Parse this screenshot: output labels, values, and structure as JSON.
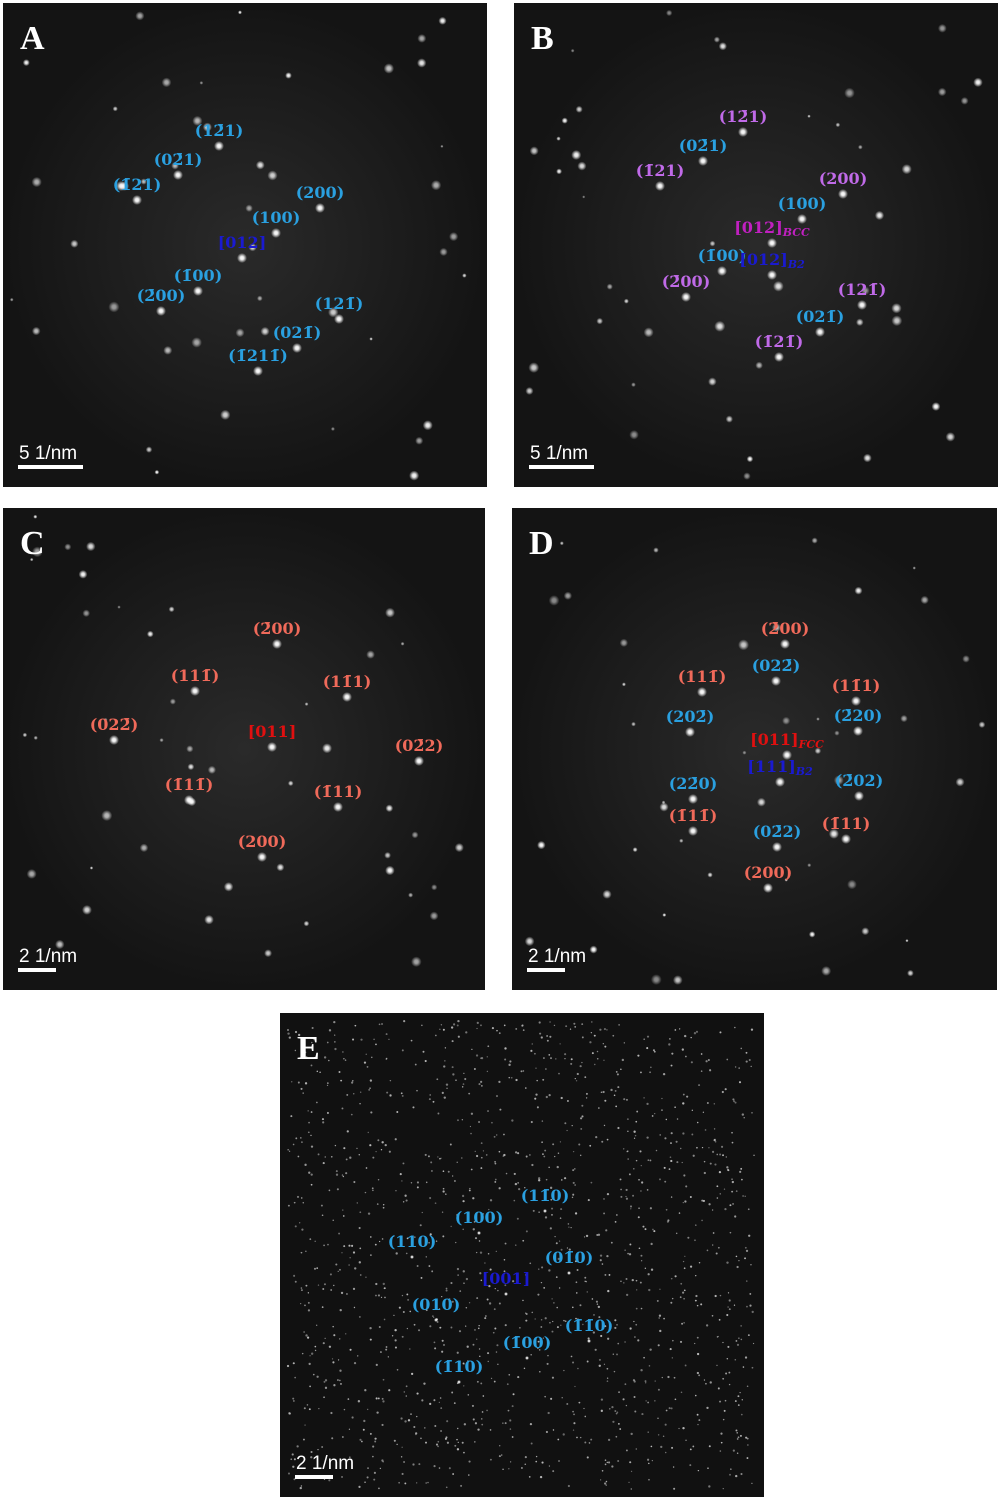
{
  "panels": [
    {
      "letter": "A",
      "scale": "5 1/nm",
      "labels": [
        {
          "text": "(12̄1)",
          "color": "#2aa0e0"
        },
        {
          "text": "(02̄1)",
          "color": "#2aa0e0"
        },
        {
          "text": "(1̄21)",
          "color": "#2aa0e0"
        },
        {
          "text": "(200)",
          "color": "#2aa0e0"
        },
        {
          "text": "(100)",
          "color": "#2aa0e0"
        },
        {
          "text": "[012]",
          "color": "#1a1ad0"
        },
        {
          "text": "(1̄00)",
          "color": "#2aa0e0"
        },
        {
          "text": "(2̄00)",
          "color": "#2aa0e0"
        },
        {
          "text": "(121̄)",
          "color": "#2aa0e0"
        },
        {
          "text": "(021̄)",
          "color": "#2aa0e0"
        },
        {
          "text": "(1̄211̄)",
          "color": "#2aa0e0"
        }
      ]
    },
    {
      "letter": "B",
      "scale": "5 1/nm",
      "labels": [
        {
          "text": "(12̄1)",
          "color": "#c06ae8"
        },
        {
          "text": "(02̄1)",
          "color": "#2aa0e0"
        },
        {
          "text": "(1̄21)",
          "color": "#c06ae8"
        },
        {
          "text": "(200)",
          "color": "#c06ae8"
        },
        {
          "text": "(100)",
          "color": "#2aa0e0"
        },
        {
          "text": "[012]",
          "sub": "BCC",
          "color": "#c020c0"
        },
        {
          "text": "(1̄00)",
          "color": "#2aa0e0"
        },
        {
          "text": "[012]",
          "sub": "B2",
          "color": "#1a1ad0"
        },
        {
          "text": "(2̄00)",
          "color": "#c06ae8"
        },
        {
          "text": "(121̄)",
          "color": "#c06ae8"
        },
        {
          "text": "(021̄)",
          "color": "#2aa0e0"
        },
        {
          "text": "(1̄21̄)",
          "color": "#c06ae8"
        }
      ]
    },
    {
      "letter": "C",
      "scale": "2 1/nm",
      "labels": [
        {
          "text": "(2̄00)",
          "color": "#f06a5a"
        },
        {
          "text": "(111̄)",
          "color": "#f06a5a"
        },
        {
          "text": "(11̄1)",
          "color": "#f06a5a"
        },
        {
          "text": "(022̄)",
          "color": "#f06a5a"
        },
        {
          "text": "[011]",
          "color": "#e01010"
        },
        {
          "text": "(02̄2)",
          "color": "#f06a5a"
        },
        {
          "text": "(1̄11̄)",
          "color": "#f06a5a"
        },
        {
          "text": "(1̄11)",
          "color": "#f06a5a"
        },
        {
          "text": "(200)",
          "color": "#f06a5a"
        }
      ]
    },
    {
      "letter": "D",
      "scale": "2 1/nm",
      "labels": [
        {
          "text": "(2̄00)",
          "color": "#f06a5a"
        },
        {
          "text": "(022̄)",
          "color": "#2aa0e0"
        },
        {
          "text": "(111̄)",
          "color": "#f06a5a"
        },
        {
          "text": "(11̄1)",
          "color": "#f06a5a"
        },
        {
          "text": "(202̄)",
          "color": "#2aa0e0"
        },
        {
          "text": "(2̄20)",
          "color": "#2aa0e0"
        },
        {
          "text": "[011]",
          "sub": "FCC",
          "color": "#e01010"
        },
        {
          "text": "[111]",
          "sub": "B2",
          "color": "#1a1ad0"
        },
        {
          "text": "(22̄0)",
          "color": "#2aa0e0"
        },
        {
          "text": "(2̄02)",
          "color": "#2aa0e0"
        },
        {
          "text": "(1̄11̄)",
          "color": "#f06a5a"
        },
        {
          "text": "(1̄11)",
          "color": "#f06a5a"
        },
        {
          "text": "(02̄2)",
          "color": "#2aa0e0"
        },
        {
          "text": "(200)",
          "color": "#f06a5a"
        }
      ]
    },
    {
      "letter": "E",
      "scale": "2 1/nm",
      "labels": [
        {
          "text": "(11̄0)",
          "color": "#2aa0e0"
        },
        {
          "text": "(100)",
          "color": "#2aa0e0"
        },
        {
          "text": "(110)",
          "color": "#2aa0e0"
        },
        {
          "text": "(01̄0)",
          "color": "#2aa0e0"
        },
        {
          "text": "[001]",
          "color": "#1a1ad0"
        },
        {
          "text": "(010)",
          "color": "#2aa0e0"
        },
        {
          "text": "(1̄1̄0)",
          "color": "#2aa0e0"
        },
        {
          "text": "(1̄00)",
          "color": "#2aa0e0"
        },
        {
          "text": "(1̄10)",
          "color": "#2aa0e0"
        }
      ]
    }
  ]
}
